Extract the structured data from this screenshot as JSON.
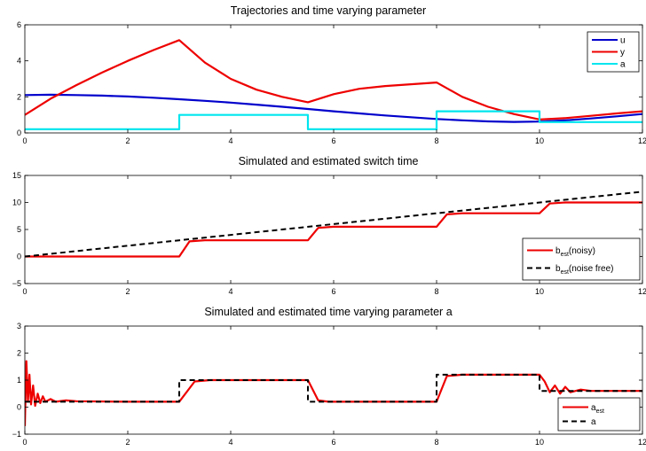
{
  "chart_data": [
    {
      "type": "line",
      "title": "Trajectories and time varying parameter",
      "xlim": [
        0,
        12
      ],
      "ylim": [
        0,
        6
      ],
      "xticks": [
        "0",
        "2",
        "4",
        "6",
        "8",
        "10",
        "12"
      ],
      "yticks": [
        "0",
        "2",
        "4",
        "6"
      ],
      "legend_position": "top-right",
      "series": [
        {
          "name": "u",
          "color": "#0000cc",
          "dash": "",
          "x": [
            0,
            0.5,
            1,
            1.5,
            2,
            2.5,
            3,
            3.5,
            4,
            4.5,
            5,
            5.5,
            6,
            6.5,
            7,
            7.5,
            8,
            8.5,
            9,
            9.5,
            10,
            10.5,
            11,
            11.5,
            12
          ],
          "y": [
            2.1,
            2.12,
            2.1,
            2.07,
            2.02,
            1.95,
            1.87,
            1.78,
            1.68,
            1.57,
            1.45,
            1.33,
            1.2,
            1.08,
            0.97,
            0.87,
            0.77,
            0.7,
            0.64,
            0.61,
            0.63,
            0.7,
            0.8,
            0.92,
            1.05
          ]
        },
        {
          "name": "y",
          "color": "#ee0000",
          "dash": "",
          "x": [
            0,
            0.5,
            1,
            1.5,
            2,
            2.5,
            3,
            3.5,
            4,
            4.5,
            5,
            5.5,
            6,
            6.5,
            7,
            7.5,
            8,
            8.5,
            9,
            9.5,
            10,
            10.5,
            11,
            11.5,
            12
          ],
          "y": [
            1.0,
            1.9,
            2.65,
            3.35,
            4.0,
            4.6,
            5.15,
            3.9,
            3.0,
            2.4,
            2.0,
            1.7,
            2.15,
            2.45,
            2.6,
            2.7,
            2.8,
            2.0,
            1.45,
            1.05,
            0.75,
            0.82,
            0.95,
            1.08,
            1.2
          ]
        },
        {
          "name": "a",
          "color": "#00e5ee",
          "dash": "",
          "x": [
            0,
            3,
            3,
            5.5,
            5.5,
            8,
            8,
            10,
            10,
            12
          ],
          "y": [
            0.2,
            0.2,
            1.0,
            1.0,
            0.2,
            0.2,
            1.2,
            1.2,
            0.6,
            0.6
          ]
        }
      ]
    },
    {
      "type": "line",
      "title": "Simulated and estimated switch time",
      "xlim": [
        0,
        12
      ],
      "ylim": [
        -5,
        15
      ],
      "xticks": [
        "0",
        "2",
        "4",
        "6",
        "8",
        "10",
        "12"
      ],
      "yticks": [
        "−5",
        "0",
        "5",
        "10",
        "15"
      ],
      "legend_position": "bottom-right",
      "series": [
        {
          "name": "b",
          "name_sub": "est",
          "name_suffix": "(noisy)",
          "color": "#ee0000",
          "dash": "",
          "x": [
            0,
            3,
            3.2,
            3.5,
            5.5,
            5.7,
            6.0,
            8.0,
            8.2,
            8.5,
            10.0,
            10.2,
            10.5,
            12
          ],
          "y": [
            0,
            0,
            2.8,
            3.0,
            3.0,
            5.3,
            5.5,
            5.5,
            7.8,
            8.0,
            8.0,
            9.8,
            10.0,
            10.0
          ]
        },
        {
          "name": "b",
          "name_sub": "est",
          "name_suffix": "(noise free)",
          "color": "#000000",
          "dash": "6,4",
          "x": [
            0,
            12
          ],
          "y": [
            0,
            12
          ]
        }
      ]
    },
    {
      "type": "line",
      "title": "Simulated and estimated time varying parameter a",
      "xlim": [
        0,
        12
      ],
      "ylim": [
        -1,
        3
      ],
      "xticks": [
        "0",
        "2",
        "4",
        "6",
        "8",
        "10",
        "12"
      ],
      "yticks": [
        "−1",
        "0",
        "1",
        "2",
        "3"
      ],
      "legend_position": "bottom-right",
      "series": [
        {
          "name": "a",
          "name_sub": "est",
          "name_suffix": "",
          "color": "#ee0000",
          "dash": "",
          "x": [
            0,
            0.03,
            0.06,
            0.09,
            0.12,
            0.16,
            0.2,
            0.25,
            0.3,
            0.35,
            0.4,
            0.5,
            0.6,
            0.8,
            1.0,
            2.0,
            3.0,
            3.3,
            3.6,
            5.5,
            5.7,
            5.9,
            8.0,
            8.2,
            8.5,
            10.0,
            10.1,
            10.2,
            10.3,
            10.4,
            10.5,
            10.6,
            10.8,
            11.0,
            12
          ],
          "y": [
            -0.7,
            1.7,
            0.2,
            1.2,
            0.1,
            0.8,
            0.05,
            0.5,
            0.15,
            0.4,
            0.2,
            0.3,
            0.2,
            0.25,
            0.22,
            0.2,
            0.2,
            0.95,
            1.0,
            1.0,
            0.25,
            0.2,
            0.2,
            1.15,
            1.2,
            1.2,
            0.95,
            0.55,
            0.8,
            0.5,
            0.75,
            0.55,
            0.65,
            0.6,
            0.6
          ]
        },
        {
          "name": "a",
          "name_sub": "",
          "name_suffix": "",
          "color": "#000000",
          "dash": "6,4",
          "x": [
            0,
            3,
            3,
            5.5,
            5.5,
            8,
            8,
            10,
            10,
            12
          ],
          "y": [
            0.2,
            0.2,
            1.0,
            1.0,
            0.2,
            0.2,
            1.2,
            1.2,
            0.6,
            0.6
          ]
        }
      ]
    }
  ]
}
